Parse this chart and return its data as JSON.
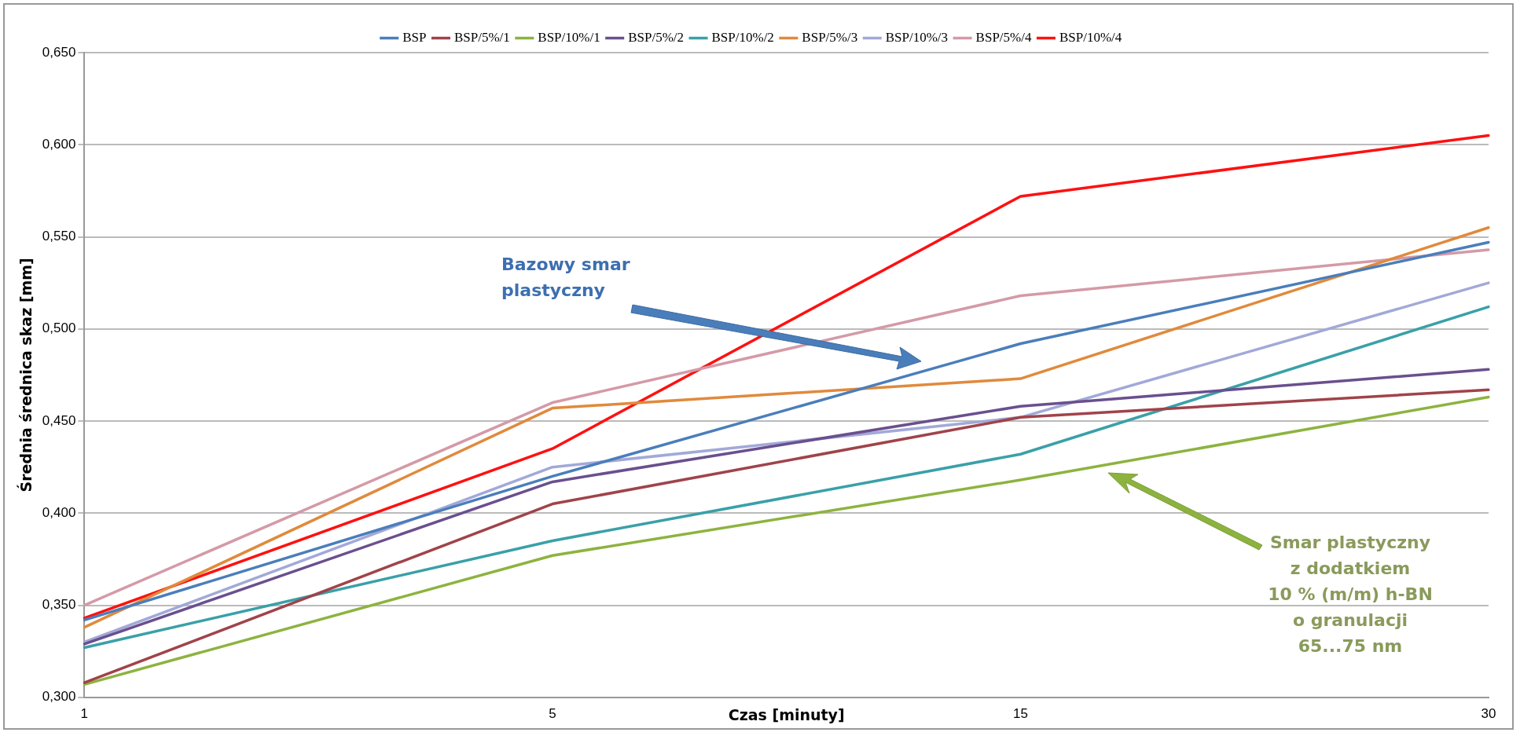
{
  "chart_data": {
    "type": "line",
    "xlabel": "Czas [minuty]",
    "ylabel": "Średnia średnica skaz [mm]",
    "categories": [
      "1",
      "5",
      "15",
      "30"
    ],
    "ylim": [
      0.3,
      0.65
    ],
    "yticks": [
      {
        "value": 0.3,
        "label": "0,300"
      },
      {
        "value": 0.35,
        "label": "0,350"
      },
      {
        "value": 0.4,
        "label": "0,400"
      },
      {
        "value": 0.45,
        "label": "0,450"
      },
      {
        "value": 0.5,
        "label": "0,500"
      },
      {
        "value": 0.55,
        "label": "0,550"
      },
      {
        "value": 0.6,
        "label": "0,600"
      },
      {
        "value": 0.65,
        "label": "0,650"
      }
    ],
    "grid": "y",
    "legend": "top",
    "marker": "none",
    "line_style": "solid",
    "series": [
      {
        "name": "BSP",
        "color": "#4a7ebb",
        "values": [
          0.342,
          0.42,
          0.492,
          0.547
        ]
      },
      {
        "name": "BSP/5%/1",
        "color": "#a0434a",
        "values": [
          0.308,
          0.405,
          0.452,
          0.467
        ]
      },
      {
        "name": "BSP/10%/1",
        "color": "#8db33f",
        "values": [
          0.307,
          0.377,
          0.418,
          0.463
        ]
      },
      {
        "name": "BSP/5%/2",
        "color": "#6a4f8e",
        "values": [
          0.329,
          0.417,
          0.458,
          0.478
        ]
      },
      {
        "name": "BSP/10%/2",
        "color": "#3aa0a8",
        "values": [
          0.327,
          0.385,
          0.432,
          0.512
        ]
      },
      {
        "name": "BSP/5%/3",
        "color": "#e08a3c",
        "values": [
          0.338,
          0.457,
          0.473,
          0.555
        ]
      },
      {
        "name": "BSP/10%/3",
        "color": "#a2a9d8",
        "values": [
          0.33,
          0.425,
          0.452,
          0.525
        ]
      },
      {
        "name": "BSP/5%/4",
        "color": "#d49aa7",
        "values": [
          0.35,
          0.46,
          0.518,
          0.543
        ]
      },
      {
        "name": "BSP/10%/4",
        "color": "#ff1010",
        "values": [
          0.343,
          0.435,
          0.572,
          0.605
        ]
      }
    ],
    "annotations": [
      "Bazowy smar\nplastyczny",
      "Smar plastyczny\nz dodatkiem\n10 % (m/m) h-BN\no granulacji\n65...75 nm"
    ]
  }
}
